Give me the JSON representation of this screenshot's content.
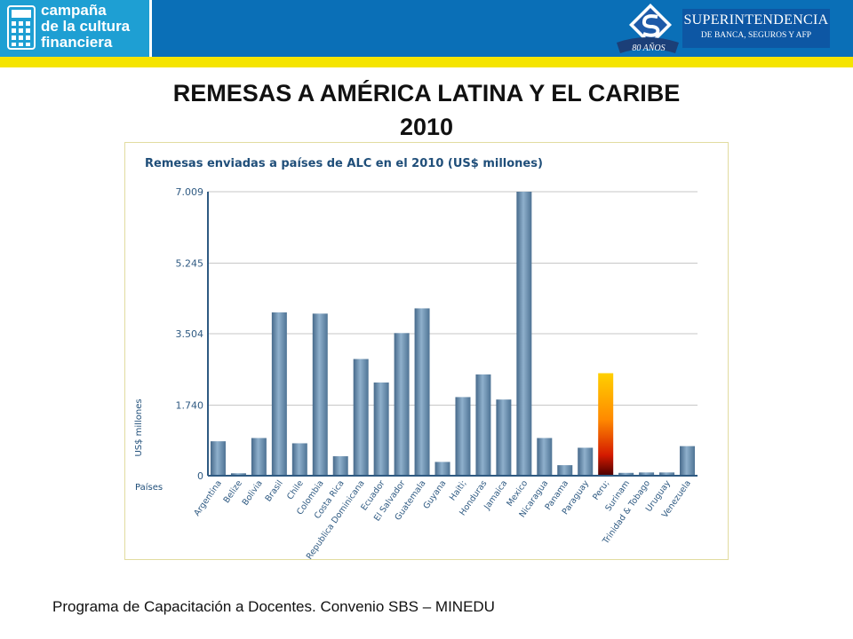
{
  "header": {
    "campaign_lines": [
      "campaña",
      "de la cultura",
      "financiera"
    ],
    "sbs_name": "SUPERINTENDENCIA",
    "sbs_subtitle": "DE BANCA, SEGUROS Y AFP",
    "anniversary": "80 AÑOS",
    "colors": {
      "bar": "#0a6fb7",
      "stripe": "#f5e400",
      "campaign_bg": "#1e9fd3"
    }
  },
  "slide": {
    "title_line1": "REMESAS A AMÉRICA LATINA Y EL CARIBE",
    "title_line2": "2010",
    "footer": "Programa de Capacitación a Docentes. Convenio SBS – MINEDU"
  },
  "chart_data": {
    "type": "bar",
    "title": "Remesas enviadas a países de ALC en el 2010 (US$ millones)",
    "ylabel": "US$ millones",
    "xlabel": "Países",
    "ylim": [
      0,
      7009
    ],
    "yticks": [
      0,
      1740,
      3504,
      5245,
      7009
    ],
    "ytick_labels": [
      "0",
      "1.740",
      "3.504",
      "5.245",
      "7.009"
    ],
    "grid": true,
    "categories": [
      "Argentina",
      "Belize",
      "Bolivia",
      "Brasil",
      "Chile",
      "Colombia",
      "Costa Rica",
      "Republica Dominicana",
      "Ecuador",
      "El Salvador",
      "Guatemala",
      "Guyana",
      "Haiti;",
      "Honduras",
      "Jamaica",
      "Mexico",
      "Nicaragua",
      "Panama",
      "Paraguay",
      "Peru;",
      "Surinam",
      "Trinidad & Tobago",
      "Uruguay",
      "Venezuela"
    ],
    "values": [
      850,
      60,
      930,
      4030,
      800,
      4000,
      480,
      2880,
      2300,
      3520,
      4130,
      340,
      1940,
      2500,
      1880,
      7009,
      930,
      260,
      690,
      2530,
      70,
      80,
      80,
      730
    ],
    "highlight": "Peru;",
    "colors": {
      "bar": "#5d84a6",
      "bar_light": "#8fb0cc",
      "highlight_top": "#ffd000",
      "highlight_bottom": "#4a0000",
      "axis": "#2f5a82",
      "title": "#1f4e79",
      "frame": "#e2dca0"
    }
  }
}
